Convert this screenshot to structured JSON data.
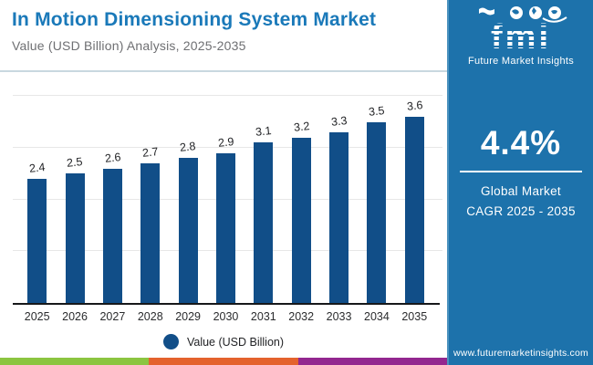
{
  "header": {
    "title": "In Motion Dimensioning System Market",
    "subtitle": "Value (USD Billion) Analysis, 2025-2035"
  },
  "sidebar": {
    "background": "#1d72ab",
    "logo": {
      "brand": "fmi",
      "caption": "Future Market Insights"
    },
    "cagr": {
      "value": "4.4%",
      "line1": "Global Market",
      "line2": "CAGR 2025 - 2035"
    },
    "website": "www.futuremarketinsights.com"
  },
  "chart_data": {
    "type": "bar",
    "categories": [
      "2025",
      "2026",
      "2027",
      "2028",
      "2029",
      "2030",
      "2031",
      "2032",
      "2033",
      "2034",
      "2035"
    ],
    "values": [
      2.4,
      2.5,
      2.6,
      2.7,
      2.8,
      2.9,
      3.1,
      3.2,
      3.3,
      3.5,
      3.6
    ],
    "title": "In Motion Dimensioning System Market",
    "xlabel": "",
    "ylabel": "Value (USD Billion)",
    "ylim": [
      0,
      4.2
    ],
    "gridline_step": 1,
    "grid": true,
    "bar_color": "#114e88",
    "legend": {
      "label": "Value (USD Billion)",
      "position": "bottom"
    }
  },
  "footer_stripe": {
    "colors": [
      "#8bc540",
      "#e4622d",
      "#93278f"
    ]
  }
}
